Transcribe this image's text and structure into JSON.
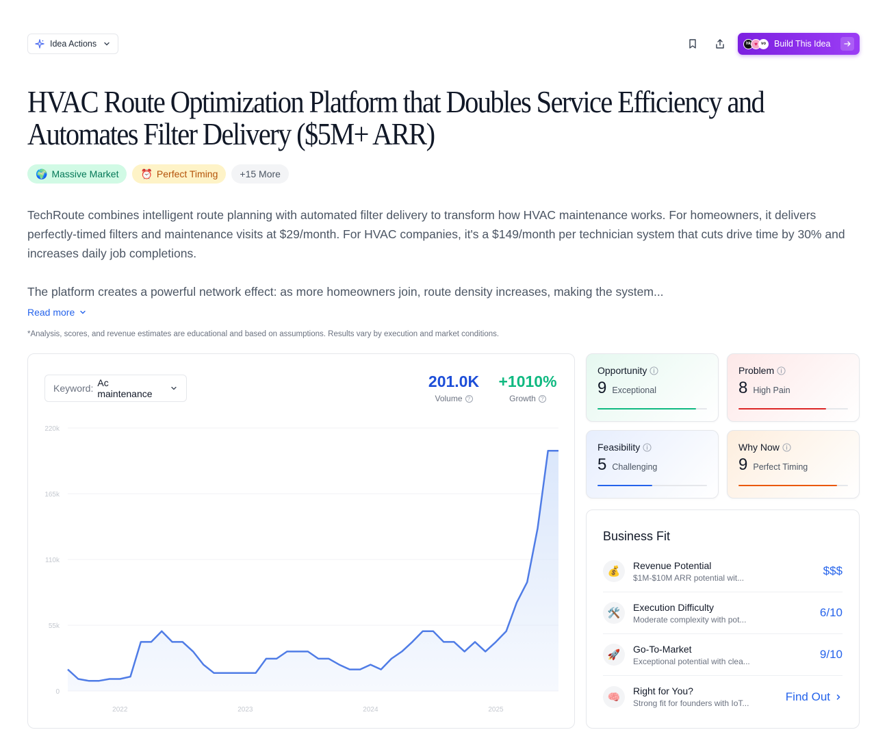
{
  "toolbar": {
    "idea_actions_label": "Idea Actions",
    "build_label": "Build This Idea",
    "logos": [
      "hk",
      "",
      "vo"
    ]
  },
  "title": "HVAC Route Optimization Platform that Doubles Service Efficiency and Automates Filter Delivery ($5M+ ARR)",
  "tags": [
    {
      "emoji": "🌍",
      "label": "Massive Market"
    },
    {
      "emoji": "⏰",
      "label": "Perfect Timing"
    },
    {
      "emoji": "",
      "label": "+15 More"
    }
  ],
  "description": {
    "p1": "TechRoute combines intelligent route planning with automated filter delivery to transform how HVAC maintenance works. For homeowners, it delivers perfectly-timed filters and maintenance visits at $29/month. For HVAC companies, it's a $149/month per technician system that cuts drive time by 30% and increases daily job completions.",
    "p2": "The platform creates a powerful network effect: as more homeowners join, route density increases, making the system..."
  },
  "read_more": "Read more",
  "disclaimer": "*Analysis, scores, and revenue estimates are educational and based on assumptions. Results vary by execution and market conditions.",
  "keyword": {
    "label": "Keyword:",
    "value": "Ac maintenance"
  },
  "metrics": {
    "volume": {
      "value": "201.0K",
      "label": "Volume",
      "color": "#1d4ed8"
    },
    "growth": {
      "value": "+1010%",
      "label": "Growth",
      "color": "#10b981"
    }
  },
  "chart_data": {
    "type": "area",
    "y_ticks": [
      "220k",
      "165k",
      "110k",
      "55k",
      "0"
    ],
    "ylim": [
      0,
      220000
    ],
    "x_ticks": [
      "2022",
      "2023",
      "2024",
      "2025"
    ],
    "x_tick_index": [
      5,
      17,
      29,
      41
    ],
    "values": [
      18000,
      10000,
      8500,
      8500,
      10000,
      10000,
      12000,
      41000,
      41000,
      50000,
      41000,
      41000,
      33000,
      22000,
      15000,
      15000,
      15000,
      15000,
      15000,
      27000,
      27000,
      33000,
      33000,
      33000,
      27000,
      27000,
      22000,
      18000,
      18000,
      22000,
      18000,
      27000,
      33000,
      41000,
      50000,
      50000,
      41000,
      41000,
      33000,
      41000,
      33000,
      41000,
      50000,
      74000,
      91000,
      136000,
      201000,
      201000
    ],
    "line_color": "#4f7ce6",
    "fill_color": "#dbe7fb"
  },
  "scores": [
    {
      "label": "Opportunity",
      "value": "9",
      "level": "Exceptional",
      "color": "#10b981",
      "fill": 0.9,
      "bg": "linear-gradient(135deg,#e6f8f0,#ffffff)"
    },
    {
      "label": "Problem",
      "value": "8",
      "level": "High Pain",
      "color": "#dc2626",
      "fill": 0.8,
      "bg": "linear-gradient(135deg,#fde8e8,#ffffff)"
    },
    {
      "label": "Feasibility",
      "value": "5",
      "level": "Challenging",
      "color": "#2563eb",
      "fill": 0.5,
      "bg": "linear-gradient(135deg,#e7eefd,#ffffff)"
    },
    {
      "label": "Why Now",
      "value": "9",
      "level": "Perfect Timing",
      "color": "#ea580c",
      "fill": 0.9,
      "bg": "linear-gradient(135deg,#fdeede,#ffffff)"
    }
  ],
  "business_fit": {
    "title": "Business Fit",
    "rows": [
      {
        "icon": "💰",
        "title": "Revenue Potential",
        "sub": "$1M-$10M ARR potential wit...",
        "value": "$$$"
      },
      {
        "icon": "🛠️",
        "title": "Execution Difficulty",
        "sub": "Moderate complexity with pot...",
        "value": "6/10"
      },
      {
        "icon": "🚀",
        "title": "Go-To-Market",
        "sub": "Exceptional potential with clea...",
        "value": "9/10"
      },
      {
        "icon": "🧠",
        "title": "Right for You?",
        "sub": "Strong fit for founders with IoT...",
        "value": "Find Out"
      }
    ]
  }
}
